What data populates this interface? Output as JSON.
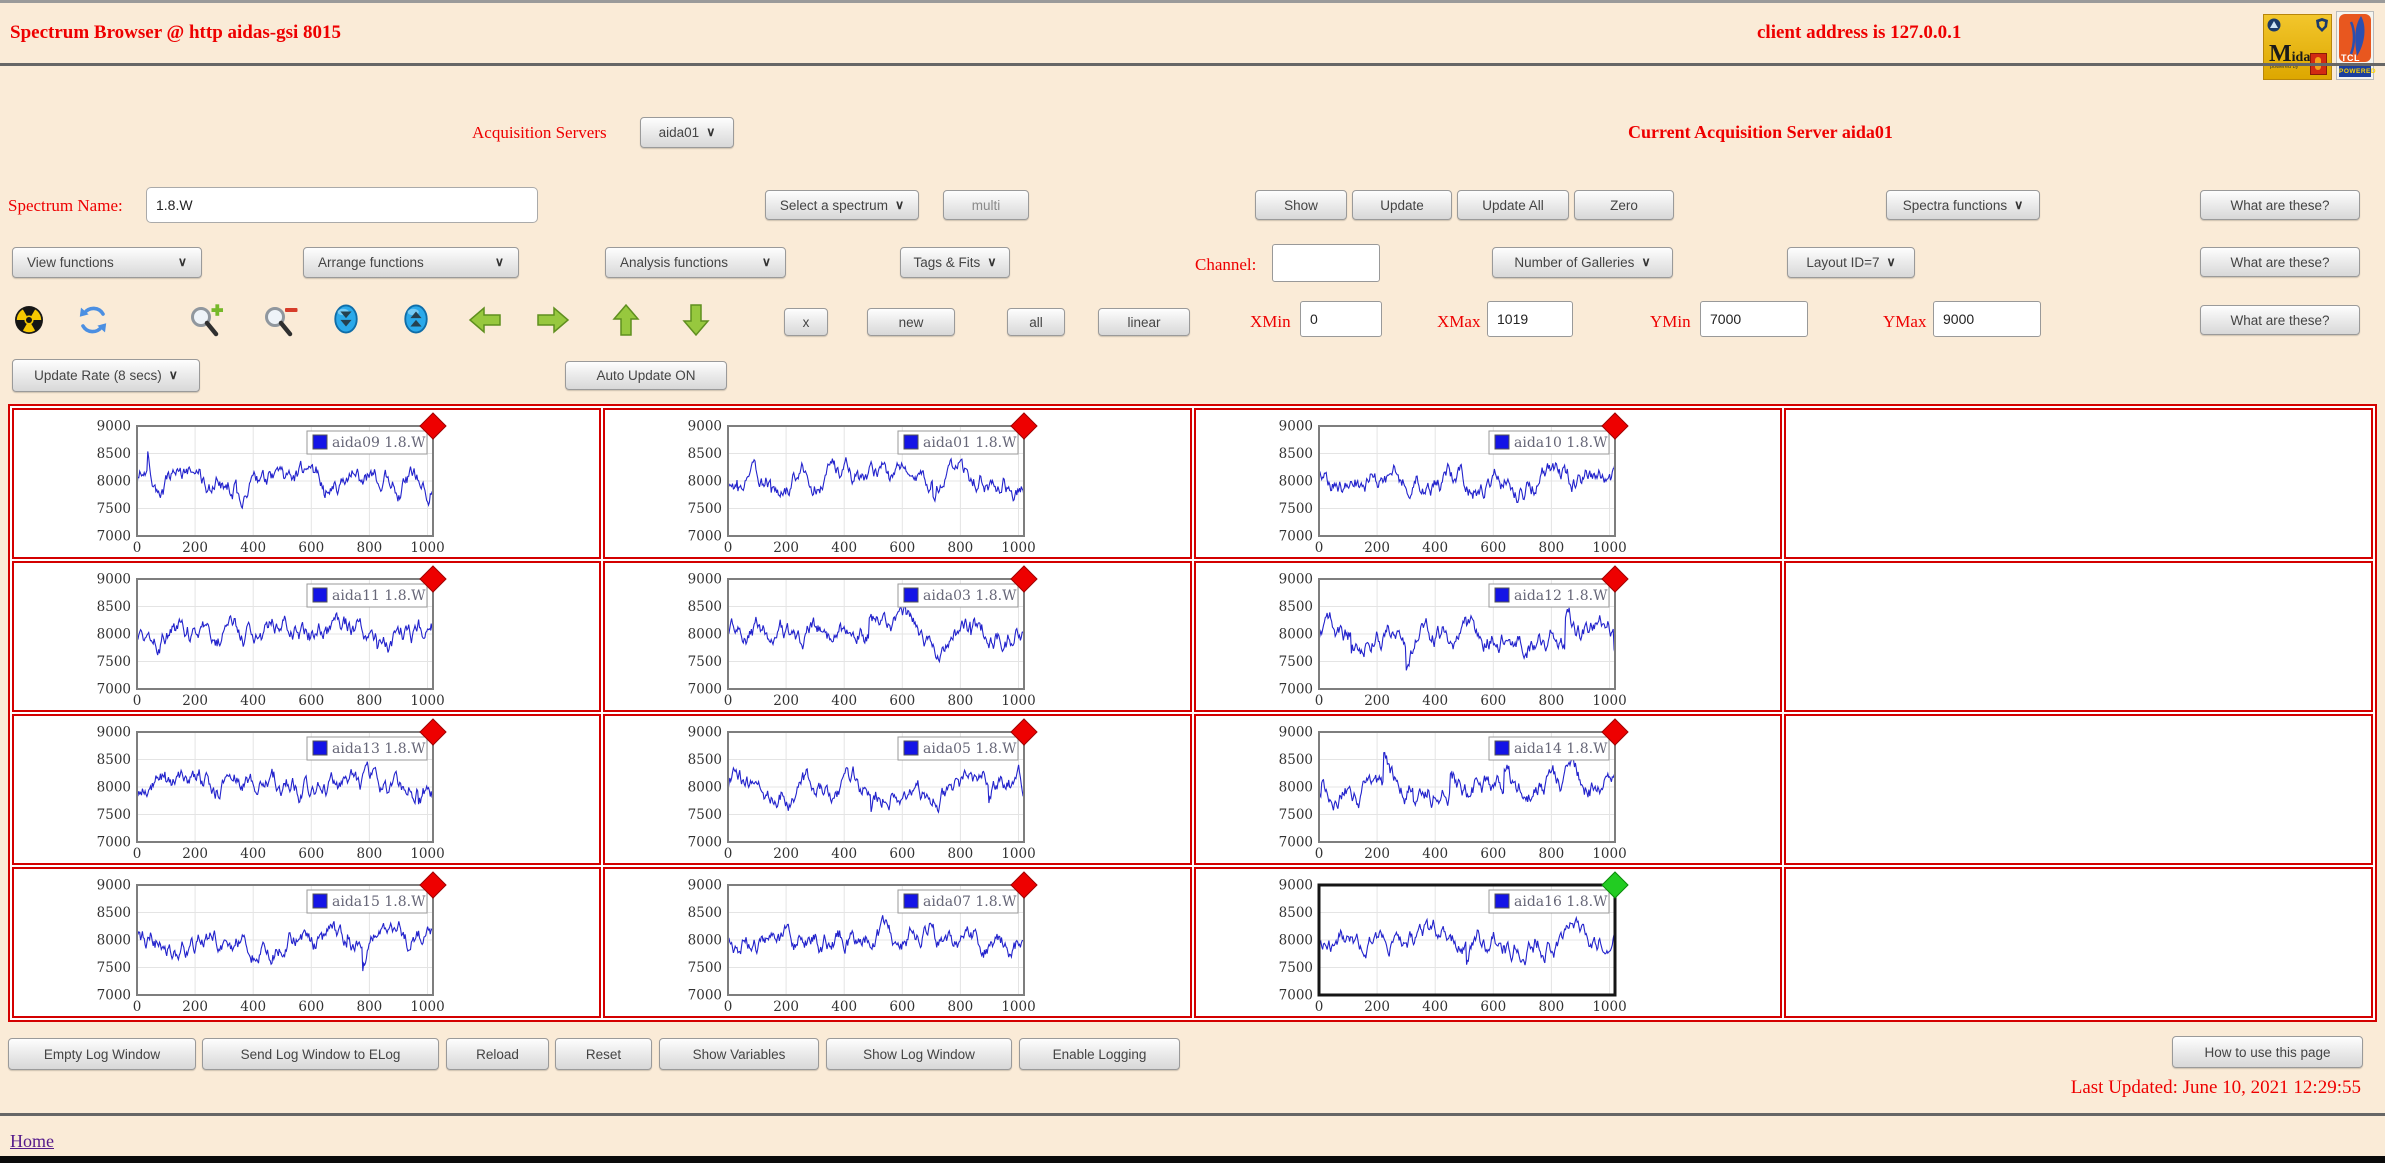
{
  "page": {
    "top_title": "Spectrum Browser @ http aidas-gsi 8015",
    "client_address": "client address is 127.0.0.1"
  },
  "logos": {
    "midas": {
      "word": "Midas",
      "powered_by": "powered by"
    },
    "tcl": {
      "name": "TCL",
      "powered": "POWERED"
    }
  },
  "acq_row": {
    "label": "Acquisition Servers",
    "server": "aida01",
    "current": "Current Acquisition Server aida01"
  },
  "spectrum_row": {
    "label": "Spectrum Name:",
    "name_value": "1.8.W",
    "select_spectrum": "Select a spectrum",
    "multi": "multi",
    "show": "Show",
    "update": "Update",
    "update_all": "Update All",
    "zero": "Zero",
    "spectra_functions": "Spectra functions",
    "what_are_these": "What are these?"
  },
  "functions_row": {
    "view": "View functions",
    "arrange": "Arrange functions",
    "analysis": "Analysis functions",
    "tags_fits": "Tags & Fits",
    "channel_label": "Channel:",
    "channel_value": "",
    "galleries": "Number of Galleries",
    "layout": "Layout ID=7",
    "what_are_these": "What are these?"
  },
  "zoom_row": {
    "icons": [
      "radiation-icon",
      "refresh-icon",
      "zoom-in-icon",
      "zoom-out-icon",
      "compress-y-icon",
      "expand-y-icon",
      "arrow-left-icon",
      "arrow-right-icon",
      "arrow-up-icon",
      "arrow-down-icon"
    ],
    "x": "x",
    "new": "new",
    "all": "all",
    "linear": "linear",
    "xmin_label": "XMin",
    "xmin": "0",
    "xmax_label": "XMax",
    "xmax": "1019",
    "ymin_label": "YMin",
    "ymin": "7000",
    "ymax_label": "YMax",
    "ymax": "9000",
    "what_are_these": "What are these?"
  },
  "update_row": {
    "rate": "Update Rate (8 secs)",
    "auto": "Auto Update ON"
  },
  "chart_data": {
    "type": "line",
    "axes": {
      "x_range": [
        0,
        1019
      ],
      "y_range": [
        7000,
        9000
      ],
      "x_ticks": [
        0,
        200,
        400,
        600,
        800,
        1000
      ],
      "y_ticks": [
        7000,
        7500,
        8000,
        8500,
        9000
      ],
      "grid": true,
      "line_color": "#2323cc"
    },
    "grid": {
      "rows": 4,
      "cols": 4,
      "note": "fourth column is empty white cells"
    },
    "series_profile": {
      "mean": 8000,
      "typical_min": 7430,
      "typical_max": 8650,
      "description": "dense noise trace of ~1020 channels oscillating around 8000 counts"
    },
    "charts": [
      {
        "name": "aida09",
        "legend": "aida09 1.8.W",
        "row": 0,
        "col": 0,
        "marker": "#ee0000",
        "selected": false,
        "seed": 9
      },
      {
        "name": "aida01",
        "legend": "aida01 1.8.W",
        "row": 0,
        "col": 1,
        "marker": "#ee0000",
        "selected": false,
        "seed": 1
      },
      {
        "name": "aida10",
        "legend": "aida10 1.8.W",
        "row": 0,
        "col": 2,
        "marker": "#ee0000",
        "selected": false,
        "seed": 10
      },
      {
        "name": "aida11",
        "legend": "aida11 1.8.W",
        "row": 1,
        "col": 0,
        "marker": "#ee0000",
        "selected": false,
        "seed": 11
      },
      {
        "name": "aida03",
        "legend": "aida03 1.8.W",
        "row": 1,
        "col": 1,
        "marker": "#ee0000",
        "selected": false,
        "seed": 3
      },
      {
        "name": "aida12",
        "legend": "aida12 1.8.W",
        "row": 1,
        "col": 2,
        "marker": "#ee0000",
        "selected": false,
        "seed": 12
      },
      {
        "name": "aida13",
        "legend": "aida13 1.8.W",
        "row": 2,
        "col": 0,
        "marker": "#ee0000",
        "selected": false,
        "seed": 13
      },
      {
        "name": "aida05",
        "legend": "aida05 1.8.W",
        "row": 2,
        "col": 1,
        "marker": "#ee0000",
        "selected": false,
        "seed": 5
      },
      {
        "name": "aida14",
        "legend": "aida14 1.8.W",
        "row": 2,
        "col": 2,
        "marker": "#ee0000",
        "selected": false,
        "seed": 14
      },
      {
        "name": "aida15",
        "legend": "aida15 1.8.W",
        "row": 3,
        "col": 0,
        "marker": "#ee0000",
        "selected": false,
        "seed": 15
      },
      {
        "name": "aida07",
        "legend": "aida07 1.8.W",
        "row": 3,
        "col": 1,
        "marker": "#ee0000",
        "selected": false,
        "seed": 7
      },
      {
        "name": "aida16",
        "legend": "aida16 1.8.W",
        "row": 3,
        "col": 2,
        "marker": "#22cc22",
        "selected": true,
        "seed": 16
      }
    ]
  },
  "footer": {
    "buttons": [
      "Empty Log Window",
      "Send Log Window to ELog",
      "Reload",
      "Reset",
      "Show Variables",
      "Show Log Window",
      "Enable Logging"
    ],
    "how": "How to use this page",
    "last_updated": "Last Updated: June 10, 2021 12:29:55",
    "home": "Home"
  },
  "colors": {
    "background": "#faebd7",
    "label_red": "#ee0000",
    "grid_border": "#d40000",
    "chart_line": "#2323cc",
    "marker_red": "#ee0000",
    "marker_green": "#22cc22"
  }
}
